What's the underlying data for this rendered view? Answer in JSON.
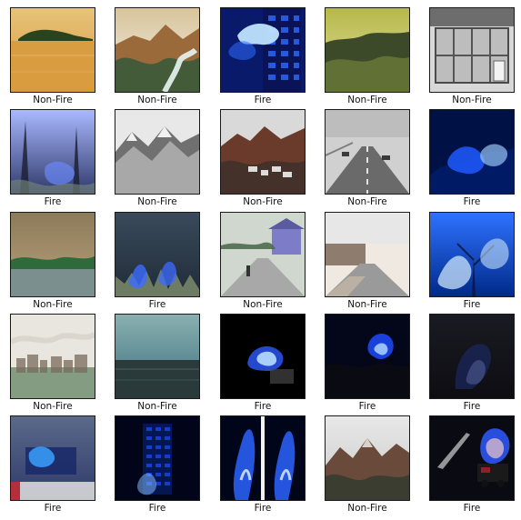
{
  "grid": {
    "rows": 5,
    "cols": 5,
    "cells": [
      {
        "label": "Non-Fire",
        "scene": "lake-island",
        "palette": [
          "#d89b3e",
          "#e7c37a",
          "#1f3d1a"
        ]
      },
      {
        "label": "Non-Fire",
        "scene": "hills-river",
        "palette": [
          "#9b6a3a",
          "#d8c49a",
          "#3a5a3a"
        ]
      },
      {
        "label": "Fire",
        "scene": "blue-building-fire",
        "palette": [
          "#0a1a6a",
          "#2f6bff",
          "#bfe3ff"
        ]
      },
      {
        "label": "Non-Fire",
        "scene": "green-valley",
        "palette": [
          "#b6b84a",
          "#3d4a2a",
          "#6a7a3a"
        ]
      },
      {
        "label": "Non-Fire",
        "scene": "glass-doors",
        "palette": [
          "#4a4a4a",
          "#8a8a8a",
          "#d8d8d8"
        ]
      },
      {
        "label": "Fire",
        "scene": "blue-forest-smoke",
        "palette": [
          "#2f3a6a",
          "#6b8cff",
          "#c7d6ff"
        ]
      },
      {
        "label": "Non-Fire",
        "scene": "snowy-mountains",
        "palette": [
          "#b7b7b7",
          "#5b5b5b",
          "#e8e8e8"
        ]
      },
      {
        "label": "Non-Fire",
        "scene": "mountain-town",
        "palette": [
          "#6a3a2a",
          "#d9d9d9",
          "#2b2b2b"
        ]
      },
      {
        "label": "Non-Fire",
        "scene": "road",
        "palette": [
          "#6a6a6a",
          "#9a9a9a",
          "#3a3a3a"
        ]
      },
      {
        "label": "Fire",
        "scene": "blue-hillside-fire",
        "palette": [
          "#001245",
          "#1e5bff",
          "#9fd0ff"
        ]
      },
      {
        "label": "Non-Fire",
        "scene": "field",
        "palette": [
          "#8c7a5a",
          "#2f6a3a",
          "#9aa0b2"
        ]
      },
      {
        "label": "Fire",
        "scene": "blue-grass-fire",
        "palette": [
          "#1f2c3a",
          "#3c6bff",
          "#7a8a6a"
        ]
      },
      {
        "label": "Non-Fire",
        "scene": "street-with-house",
        "palette": [
          "#4f6b4f",
          "#7c7cc9",
          "#a8a8a8"
        ]
      },
      {
        "label": "Non-Fire",
        "scene": "sidewalk",
        "palette": [
          "#7d6a5a",
          "#9a9a9a",
          "#c8b9a8"
        ]
      },
      {
        "label": "Fire",
        "scene": "blue-tree-flames",
        "palette": [
          "#002a8a",
          "#2f72ff",
          "#d7f0ff"
        ]
      },
      {
        "label": "Non-Fire",
        "scene": "cityscape",
        "palette": [
          "#e8e6de",
          "#6a8a6a",
          "#7a6a5a"
        ]
      },
      {
        "label": "Non-Fire",
        "scene": "sea-dusk",
        "palette": [
          "#3b6f7f",
          "#2a3a3a",
          "#8ab0b0"
        ]
      },
      {
        "label": "Fire",
        "scene": "night-blast",
        "palette": [
          "#000000",
          "#2e5bff",
          "#b9ddff"
        ]
      },
      {
        "label": "Fire",
        "scene": "night-explosion",
        "palette": [
          "#04061a",
          "#1f4bff",
          "#9dc5ff"
        ]
      },
      {
        "label": "Fire",
        "scene": "dark-smoke",
        "palette": [
          "#0d0d12",
          "#1b2b6a",
          "#7a8acb"
        ]
      },
      {
        "label": "Fire",
        "scene": "mansion-news",
        "palette": [
          "#2f3a6a",
          "#3aa0ff",
          "#d8d8d8"
        ]
      },
      {
        "label": "Fire",
        "scene": "highrise-fire",
        "palette": [
          "#02051a",
          "#1e4dff",
          "#7bb7ff"
        ]
      },
      {
        "label": "Fire",
        "scene": "split-columns",
        "palette": [
          "#00051a",
          "#2a64ff",
          "#e2f2ff"
        ]
      },
      {
        "label": "Non-Fire",
        "scene": "mountain-range",
        "palette": [
          "#c9c9c9",
          "#6a4a3a",
          "#2f3a2f"
        ]
      },
      {
        "label": "Fire",
        "scene": "truck-night-fire",
        "palette": [
          "#0a0a12",
          "#2f5bff",
          "#ffcfc9"
        ]
      }
    ]
  }
}
